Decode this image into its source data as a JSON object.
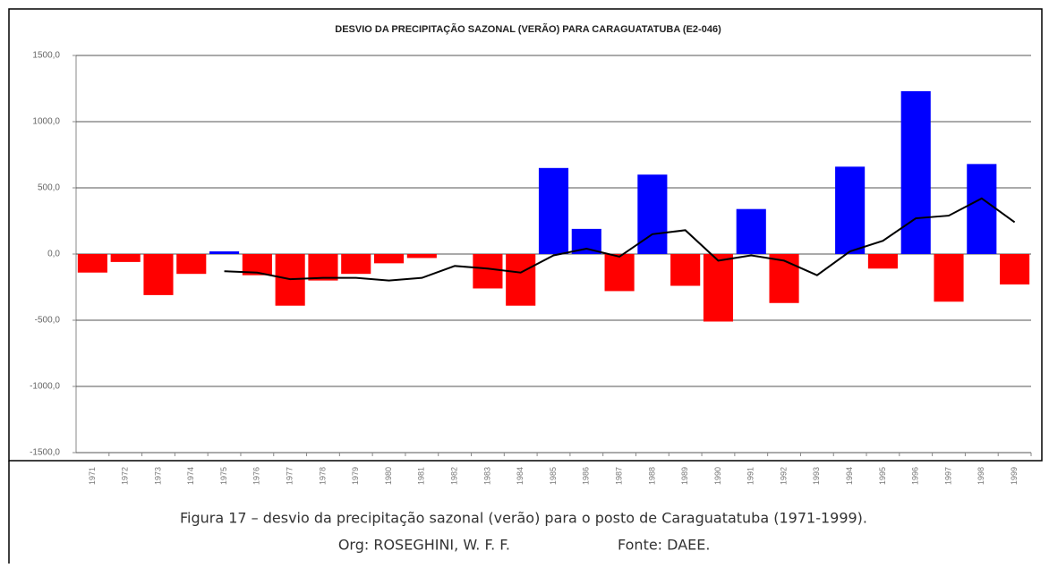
{
  "chart_data": {
    "type": "bar",
    "title": "DESVIO DA PRECIPITAÇÃO SAZONAL (VERÃO) PARA CARAGUATATUBA (E2-046)",
    "categories": [
      "1971",
      "1972",
      "1973",
      "1974",
      "1975",
      "1976",
      "1977",
      "1978",
      "1979",
      "1980",
      "1981",
      "1982",
      "1983",
      "1984",
      "1985",
      "1986",
      "1987",
      "1988",
      "1989",
      "1990",
      "1991",
      "1992",
      "1993",
      "1994",
      "1995",
      "1996",
      "1997",
      "1998",
      "1999"
    ],
    "values": [
      -140,
      -60,
      -310,
      -150,
      20,
      -160,
      -390,
      -200,
      -150,
      -70,
      -30,
      0,
      -260,
      -390,
      650,
      190,
      -280,
      600,
      -240,
      -510,
      340,
      -370,
      0,
      660,
      -110,
      1230,
      -360,
      680,
      -230
    ],
    "positive_color": "#0000ff",
    "negative_color": "#ff0000",
    "ylim": [
      -1500,
      1500
    ],
    "yticks": [
      {
        "value": -1500,
        "label": "-1500,0"
      },
      {
        "value": -1000,
        "label": "-1000,0"
      },
      {
        "value": -500,
        "label": "-500,0"
      },
      {
        "value": 0,
        "label": "0,0"
      },
      {
        "value": 500,
        "label": "500,0"
      },
      {
        "value": 1000,
        "label": "1000,0"
      },
      {
        "value": 1500,
        "label": "1500,0"
      }
    ],
    "grid": true,
    "overlay": {
      "type": "line",
      "color": "#000000",
      "values": [
        null,
        null,
        null,
        null,
        -130,
        -140,
        -190,
        -180,
        -180,
        -200,
        -180,
        -90,
        -110,
        -140,
        -10,
        40,
        -20,
        150,
        180,
        -50,
        -10,
        -50,
        -160,
        20,
        100,
        270,
        290,
        420,
        240
      ]
    }
  },
  "caption": {
    "figure": "Figura 17 – desvio da precipitação sazonal (verão) para o posto de Caraguatatuba (1971-1999).",
    "org": "Org: ROSEGHINI, W. F. F.",
    "source": "Fonte: DAEE."
  }
}
